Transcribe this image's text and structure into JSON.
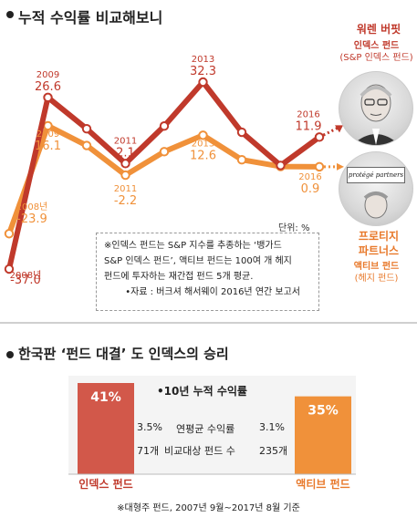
{
  "section1": {
    "title": "누적 수익률 비교해보니"
  },
  "buffett": {
    "name": "워렌 버핏",
    "fund": "인덱스 펀드",
    "fund_detail": "(S&P 인덱스 펀드)",
    "color": "#c0392b"
  },
  "protege": {
    "name": "프로티지",
    "name2": "파트너스",
    "fund": "액티브 펀드",
    "fund_detail": "(헤지 펀드)",
    "sign": "protégé partners",
    "color": "#f0913a"
  },
  "unit": "단위: %",
  "note": {
    "line1": "※인덱스 펀드는 S&P 지수를 추종하는 ‘뱅가드",
    "line2": "S&P 인덱스 펀드’, 액티브 펀드는 100여 개 헤지",
    "line3": "펀드에 투자하는 재간접 펀드 5개 평균.",
    "source": "•자료 : 버크셔 해서웨이 2016년 연간 보고서"
  },
  "section2": {
    "title": "한국판 ‘펀드 대결’ 도 인덱스의 승리",
    "subtitle": "•10년 누적 수익률",
    "rows": [
      {
        "left": "3.5%",
        "label": "연평균 수익률",
        "right": "3.1%"
      },
      {
        "left": "71개",
        "label": "비교대상 펀드 수",
        "right": "235개"
      }
    ],
    "footnote": "※대형주 펀드, 2007년 9월~2017년 8월 기준"
  },
  "chart_data": [
    {
      "type": "line",
      "x": [
        "2008",
        "2009",
        "2010",
        "2011",
        "2012",
        "2013",
        "2014",
        "2015",
        "2016"
      ],
      "series": [
        {
          "name": "인덱스 펀드",
          "values": [
            -37.0,
            26.6,
            15.0,
            2.1,
            16.0,
            32.3,
            13.7,
            1.4,
            11.9
          ],
          "color": "#c0392b"
        },
        {
          "name": "액티브 펀드",
          "values": [
            -23.9,
            16.1,
            8.8,
            -2.2,
            6.5,
            12.6,
            3.5,
            1.0,
            0.9
          ],
          "color": "#f0913a"
        }
      ],
      "data_labels": [
        {
          "series": 0,
          "index": 0,
          "year": "2008년",
          "value": "-37.0"
        },
        {
          "series": 0,
          "index": 1,
          "year": "2009",
          "value": "26.6"
        },
        {
          "series": 0,
          "index": 3,
          "year": "2011",
          "value": "2.1"
        },
        {
          "series": 0,
          "index": 5,
          "year": "2013",
          "value": "32.3"
        },
        {
          "series": 0,
          "index": 8,
          "year": "2016",
          "value": "11.9"
        },
        {
          "series": 1,
          "index": 0,
          "year": "2008년",
          "value": "-23.9"
        },
        {
          "series": 1,
          "index": 1,
          "year": "2009",
          "value": "16.1"
        },
        {
          "series": 1,
          "index": 3,
          "year": "2011",
          "value": "-2.2"
        },
        {
          "series": 1,
          "index": 5,
          "year": "2013",
          "value": "12.6"
        },
        {
          "series": 1,
          "index": 8,
          "year": "2016",
          "value": "0.9"
        }
      ]
    },
    {
      "type": "bar",
      "categories": [
        "인덱스 펀드",
        "액티브 펀드"
      ],
      "values": [
        41,
        35
      ],
      "labels": [
        "41%",
        "35%"
      ],
      "colors": [
        "#d2584a",
        "#f0913a"
      ]
    }
  ]
}
